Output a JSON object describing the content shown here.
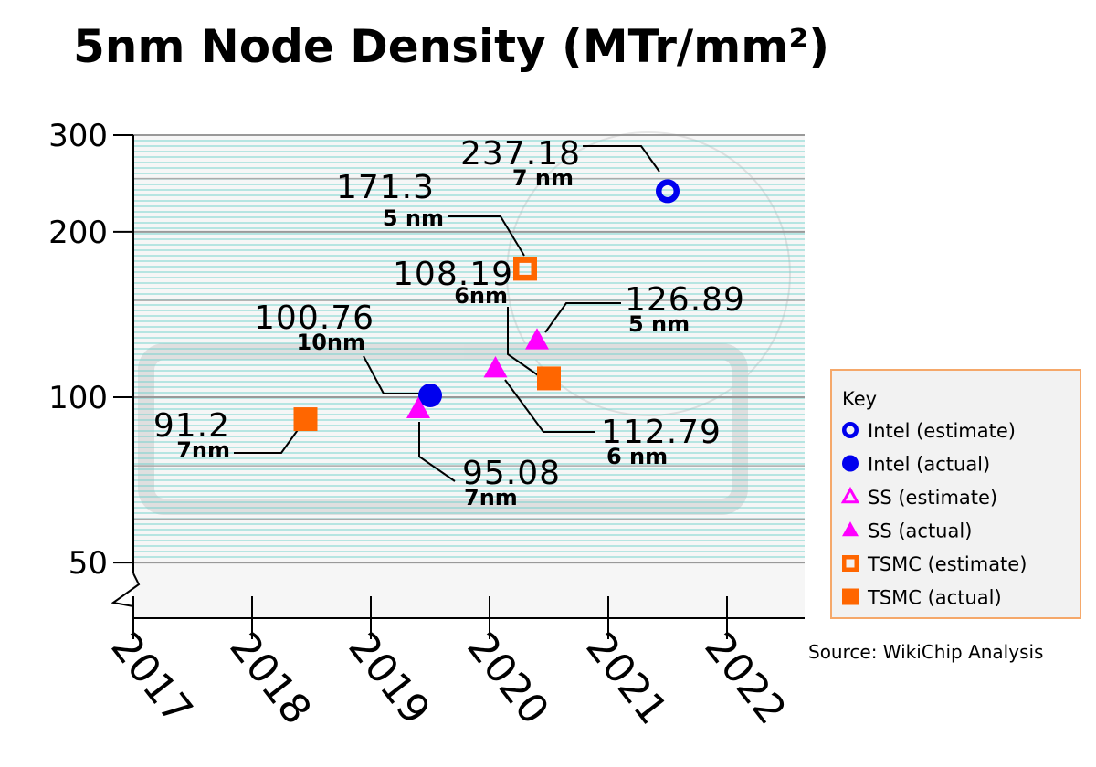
{
  "chart_data": {
    "type": "scatter",
    "title": "5nm Node Density (MTr/mm²)",
    "source": "Source: WikiChip Analysis",
    "x_ticks": [
      "2017",
      "2018",
      "2019",
      "2020",
      "2021",
      "2022"
    ],
    "y_ticks": [
      "50",
      "100",
      "200",
      "300"
    ],
    "y_scale": "log",
    "ylim": [
      50,
      300
    ],
    "axis_break": "y-axis below 50",
    "grid": true,
    "legend": {
      "title": "Key",
      "placement": "right",
      "entries": [
        "Intel (estimate)",
        "Intel (actual)",
        "SS (estimate)",
        "SS (actual)",
        "TSMC (estimate)",
        "TSMC (actual)"
      ]
    },
    "series": [
      {
        "name": "Intel (estimate)",
        "color": "#0000ee",
        "marker": "circle-open",
        "points": [
          {
            "x": 2021.5,
            "y": 237.18,
            "value": "237.18",
            "node": "7 nm"
          }
        ]
      },
      {
        "name": "Intel (actual)",
        "color": "#0000ee",
        "marker": "circle-filled",
        "points": [
          {
            "x": 2019.5,
            "y": 100.76,
            "value": "100.76",
            "node": "10nm"
          }
        ]
      },
      {
        "name": "SS (estimate)",
        "color": "#ff00ff",
        "marker": "triangle-open",
        "points": []
      },
      {
        "name": "SS (actual)",
        "color": "#ff00ff",
        "marker": "triangle-filled",
        "points": [
          {
            "x": 2019.4,
            "y": 95.08,
            "value": "95.08",
            "node": "7nm"
          },
          {
            "x": 2020.05,
            "y": 112.79,
            "value": "112.79",
            "node": "6 nm"
          },
          {
            "x": 2020.4,
            "y": 126.89,
            "value": "126.89",
            "node": "5 nm"
          }
        ]
      },
      {
        "name": "TSMC (estimate)",
        "color": "#ff6600",
        "marker": "square-open",
        "points": [
          {
            "x": 2020.3,
            "y": 171.3,
            "value": "171.3",
            "node": "5 nm"
          }
        ]
      },
      {
        "name": "TSMC (actual)",
        "color": "#ff6600",
        "marker": "square-filled",
        "points": [
          {
            "x": 2018.45,
            "y": 91.2,
            "value": "91.2",
            "node": "7nm"
          },
          {
            "x": 2020.5,
            "y": 108.19,
            "value": "108.19",
            "node": "6nm"
          }
        ]
      }
    ]
  }
}
